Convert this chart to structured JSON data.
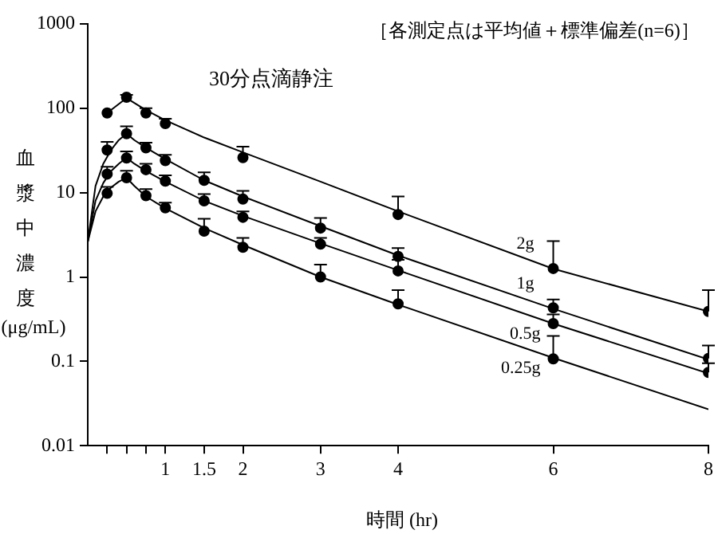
{
  "chart_data": {
    "type": "scatter",
    "xlabel": "時間 (hr)",
    "ylabel": "血漿中濃度(μg/mL)",
    "annotations": [
      "［各測定点は平均値＋標準偏差(n=6)］",
      "30分点滴静注"
    ],
    "xlim": [
      0,
      8
    ],
    "xticks": [
      {
        "value": 0.25,
        "label": null
      },
      {
        "value": 0.5,
        "label": null
      },
      {
        "value": 0.75,
        "label": null
      },
      1,
      1.5,
      2,
      3,
      4,
      6,
      8
    ],
    "ylim": [
      0.01,
      1000
    ],
    "yticks": [
      0.01,
      0.1,
      1,
      10,
      100,
      1000
    ],
    "log": "y",
    "grid": false,
    "legend": false,
    "series": [
      {
        "type": "scatter",
        "color": "#000000",
        "marker": "circle",
        "x": [
          0.25,
          0.5,
          0.75,
          1,
          2,
          4,
          6,
          8
        ],
        "values": [
          88,
          135,
          88,
          66,
          26,
          5.5,
          1.26,
          0.39
        ],
        "errors": [
          null,
          [
            135,
            144
          ],
          [
            88,
            100
          ],
          [
            66,
            75
          ],
          [
            26,
            35
          ],
          [
            5.5,
            9
          ],
          [
            1.26,
            2.66
          ],
          [
            0.39,
            0.7
          ]
        ]
      },
      {
        "type": "scatter",
        "color": "#000000",
        "marker": "circle",
        "x": [
          0.25,
          0.5,
          0.75,
          1,
          1.5,
          2,
          3,
          4,
          6,
          8
        ],
        "values": [
          32,
          50,
          34,
          24,
          14,
          8.4,
          3.8,
          1.75,
          0.43,
          0.108
        ],
        "errors": [
          [
            32,
            40
          ],
          [
            50,
            61
          ],
          [
            34,
            39
          ],
          [
            24,
            28
          ],
          [
            14,
            17.4
          ],
          [
            8.4,
            10.5
          ],
          [
            3.8,
            5
          ],
          [
            1.75,
            2.2
          ],
          [
            0.43,
            0.54
          ],
          [
            0.108,
            0.154
          ]
        ]
      },
      {
        "type": "scatter",
        "color": "#000000",
        "marker": "circle",
        "x": [
          0.25,
          0.5,
          0.75,
          1,
          1.5,
          2,
          3,
          4,
          6,
          8
        ],
        "values": [
          16.6,
          25.7,
          18.7,
          13.7,
          8,
          5.1,
          2.45,
          1.18,
          0.28,
          0.074
        ],
        "errors": [
          [
            16.6,
            20.3
          ],
          [
            25.7,
            30.8
          ],
          [
            18.7,
            22
          ],
          [
            13.7,
            16
          ],
          [
            8,
            9.6
          ],
          [
            5.1,
            6
          ],
          [
            2.45,
            2.9
          ],
          [
            1.18,
            1.6
          ],
          [
            0.28,
            0.36
          ],
          [
            0.074,
            0.095
          ]
        ]
      },
      {
        "type": "scatter",
        "color": "#000000",
        "marker": "circle",
        "x": [
          0.25,
          0.5,
          0.75,
          1,
          1.5,
          2,
          3,
          4,
          6
        ],
        "values": [
          9.8,
          15,
          9.2,
          6.6,
          3.5,
          2.25,
          1,
          0.48,
          0.107
        ],
        "errors": [
          [
            9.8,
            11.7
          ],
          [
            15,
            18.2
          ],
          [
            9.2,
            11
          ],
          [
            6.6,
            7.6
          ],
          [
            3.5,
            4.9
          ],
          [
            2.25,
            2.9
          ],
          [
            1,
            1.4
          ],
          [
            0.48,
            0.7
          ],
          [
            0.107,
            0.2
          ]
        ]
      },
      {
        "type": "line",
        "name": "2g",
        "color": "#000000",
        "marker": "none",
        "x": [
          0.25,
          0.5,
          0.75,
          1,
          1.5,
          2,
          3,
          4,
          6,
          8
        ],
        "values": [
          88,
          132,
          95,
          72,
          45,
          30,
          13.5,
          6,
          1.25,
          0.39
        ]
      },
      {
        "type": "line",
        "name": "1g",
        "color": "#000000",
        "marker": "none",
        "x": [
          0,
          0.1,
          0.2,
          0.3,
          0.4,
          0.5,
          0.6,
          0.75,
          1,
          1.5,
          2,
          3,
          4,
          6,
          8
        ],
        "values": [
          2.6,
          12,
          22,
          32,
          42,
          50,
          42,
          34,
          25,
          14,
          9,
          4,
          1.8,
          0.42,
          0.105
        ]
      },
      {
        "type": "line",
        "name": "0.5g",
        "color": "#000000",
        "marker": "none",
        "x": [
          0,
          0.1,
          0.2,
          0.3,
          0.4,
          0.5,
          0.6,
          0.75,
          1,
          1.5,
          2,
          3,
          4,
          6,
          8
        ],
        "values": [
          2.6,
          8,
          13,
          18,
          22,
          26,
          22,
          18,
          13.5,
          8,
          5.3,
          2.5,
          1.2,
          0.28,
          0.072
        ]
      },
      {
        "type": "line",
        "name": "0.25g",
        "color": "#000000",
        "marker": "none",
        "x": [
          0,
          0.1,
          0.2,
          0.3,
          0.4,
          0.5,
          0.6,
          0.75,
          1,
          1.5,
          2,
          3,
          4,
          6,
          8
        ],
        "values": [
          2.6,
          6,
          9,
          11.5,
          13.5,
          15,
          12,
          9,
          6.5,
          3.8,
          2.4,
          1,
          0.47,
          0.11,
          0.027
        ]
      }
    ]
  }
}
